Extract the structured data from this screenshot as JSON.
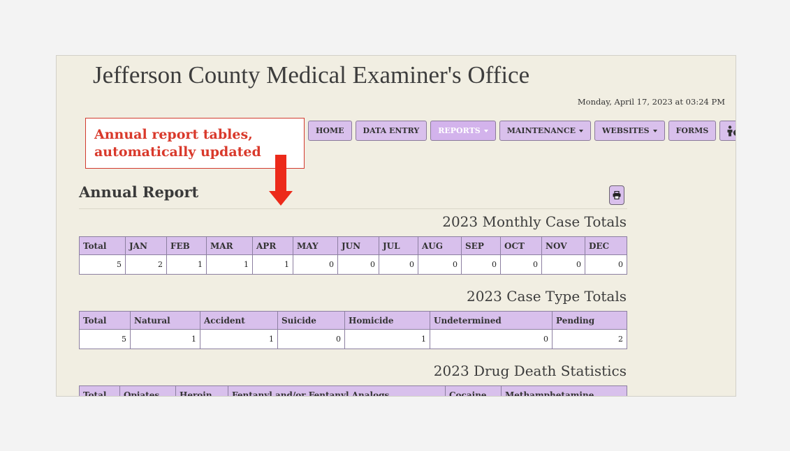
{
  "site": {
    "title": "Jefferson County Medical Examiner's Office",
    "datetime": "Monday, April 17, 2023 at 03:24 PM"
  },
  "nav": {
    "home": "HOME",
    "data_entry": "DATA ENTRY",
    "reports": "REPORTS",
    "maintenance": "MAINTENANCE",
    "websites": "WEBSITES",
    "forms": "FORMS",
    "help_icon": "person-help-icon",
    "refresh_icon": "refresh-icon"
  },
  "callout": {
    "line1": "Annual report tables,",
    "line2": "automatically updated",
    "color": "#d9392b"
  },
  "report": {
    "title": "Annual Report",
    "print_icon": "print-icon"
  },
  "monthly": {
    "title": "2023 Monthly Case Totals",
    "headers": [
      "Total",
      "JAN",
      "FEB",
      "MAR",
      "APR",
      "MAY",
      "JUN",
      "JUL",
      "AUG",
      "SEP",
      "OCT",
      "NOV",
      "DEC"
    ],
    "values": [
      "5",
      "2",
      "1",
      "1",
      "1",
      "0",
      "0",
      "0",
      "0",
      "0",
      "0",
      "0",
      "0"
    ]
  },
  "case_types": {
    "title": "2023 Case Type Totals",
    "headers": [
      "Total",
      "Natural",
      "Accident",
      "Suicide",
      "Homicide",
      "Undetermined",
      "Pending"
    ],
    "values": [
      "5",
      "1",
      "1",
      "0",
      "1",
      "0",
      "2"
    ]
  },
  "drug": {
    "title": "2023 Drug Death Statistics",
    "headers": [
      "Total",
      "Opiates",
      "Heroin",
      "Fentanyl and/or Fentanyl Analogs",
      "Cocaine",
      "Methamphetamine"
    ]
  },
  "colors": {
    "nav_bg": "#d9c0ec",
    "table_header_bg": "#d8c0ec",
    "panel_bg": "#f1eee2"
  }
}
